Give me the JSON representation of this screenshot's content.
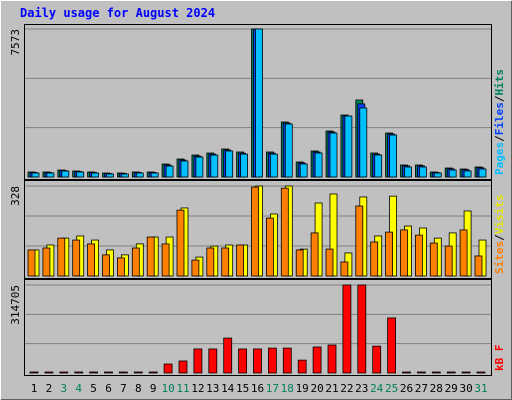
{
  "chart_data": [
    {
      "type": "bar",
      "title": "Daily usage for August 2024",
      "separator": "/",
      "ylim": [
        0,
        7573
      ],
      "yticks": [
        7573
      ],
      "series": [
        {
          "name": "Hits",
          "color": "#00805c",
          "values": [
            256,
            256,
            358,
            307,
            256,
            205,
            205,
            256,
            256,
            665,
            921,
            1126,
            1228,
            1433,
            1279,
            7573,
            1279,
            2814,
            768,
            1331,
            2354,
            3173,
            3941,
            1228,
            2251,
            614,
            614,
            256,
            460,
            409,
            512
          ]
        },
        {
          "name": "Files",
          "color": "#0040ff",
          "values": [
            230,
            230,
            330,
            280,
            230,
            180,
            180,
            230,
            230,
            610,
            870,
            1070,
            1170,
            1380,
            1220,
            7573,
            1220,
            2760,
            720,
            1280,
            2300,
            3120,
            3740,
            1170,
            2200,
            570,
            570,
            230,
            420,
            370,
            470
          ]
        },
        {
          "name": "Pages",
          "color": "#00c0ff",
          "values": [
            205,
            205,
            307,
            256,
            205,
            154,
            154,
            205,
            205,
            560,
            820,
            1020,
            1120,
            1330,
            1170,
            7573,
            1170,
            2712,
            665,
            1228,
            2251,
            3122,
            3531,
            1126,
            2149,
            512,
            512,
            205,
            358,
            307,
            409
          ]
        }
      ]
    },
    {
      "type": "bar",
      "separator": "/",
      "ylim": [
        0,
        328
      ],
      "yticks": [
        328
      ],
      "series": [
        {
          "name": "Visits",
          "color": "#ffff00",
          "values": [
            95,
            113,
            138,
            146,
            131,
            95,
            77,
            117,
            142,
            142,
            248,
            69,
            109,
            113,
            113,
            328,
            226,
            328,
            98,
            266,
            299,
            84,
            288,
            146,
            291,
            182,
            175,
            138,
            157,
            237,
            131
          ]
        },
        {
          "name": "Sites",
          "color": "#ff8000",
          "values": [
            95,
            102,
            138,
            131,
            117,
            77,
            66,
            102,
            142,
            117,
            240,
            58,
            102,
            102,
            113,
            324,
            211,
            320,
            95,
            157,
            98,
            51,
            255,
            124,
            160,
            168,
            149,
            120,
            109,
            168,
            73
          ]
        }
      ]
    },
    {
      "type": "bar",
      "ylim": [
        0,
        314705
      ],
      "yticks": [
        314705
      ],
      "categories": [
        "1",
        "2",
        "3",
        "4",
        "5",
        "6",
        "7",
        "8",
        "9",
        "10",
        "11",
        "12",
        "13",
        "14",
        "15",
        "16",
        "17",
        "18",
        "19",
        "20",
        "21",
        "22",
        "23",
        "24",
        "25",
        "26",
        "27",
        "28",
        "29",
        "30",
        "31"
      ],
      "category_colors": [
        "#000000",
        "#000000",
        "#00805c",
        "#00805c",
        "#000000",
        "#000000",
        "#000000",
        "#000000",
        "#000000",
        "#00805c",
        "#00805c",
        "#000000",
        "#000000",
        "#000000",
        "#000000",
        "#000000",
        "#00805c",
        "#00805c",
        "#000000",
        "#000000",
        "#000000",
        "#000000",
        "#000000",
        "#00805c",
        "#00805c",
        "#000000",
        "#000000",
        "#000000",
        "#000000",
        "#000000",
        "#00805c"
      ],
      "series": [
        {
          "name": "kB F",
          "color": "#ff0000",
          "values": [
            3576,
            3576,
            3576,
            3576,
            3576,
            3576,
            3576,
            3576,
            3576,
            32000,
            43000,
            86000,
            86000,
            125000,
            86000,
            86000,
            89000,
            89000,
            46000,
            93000,
            100000,
            314705,
            314705,
            96000,
            197000,
            3576,
            3576,
            3576,
            3576,
            3576,
            3576
          ]
        }
      ]
    }
  ]
}
